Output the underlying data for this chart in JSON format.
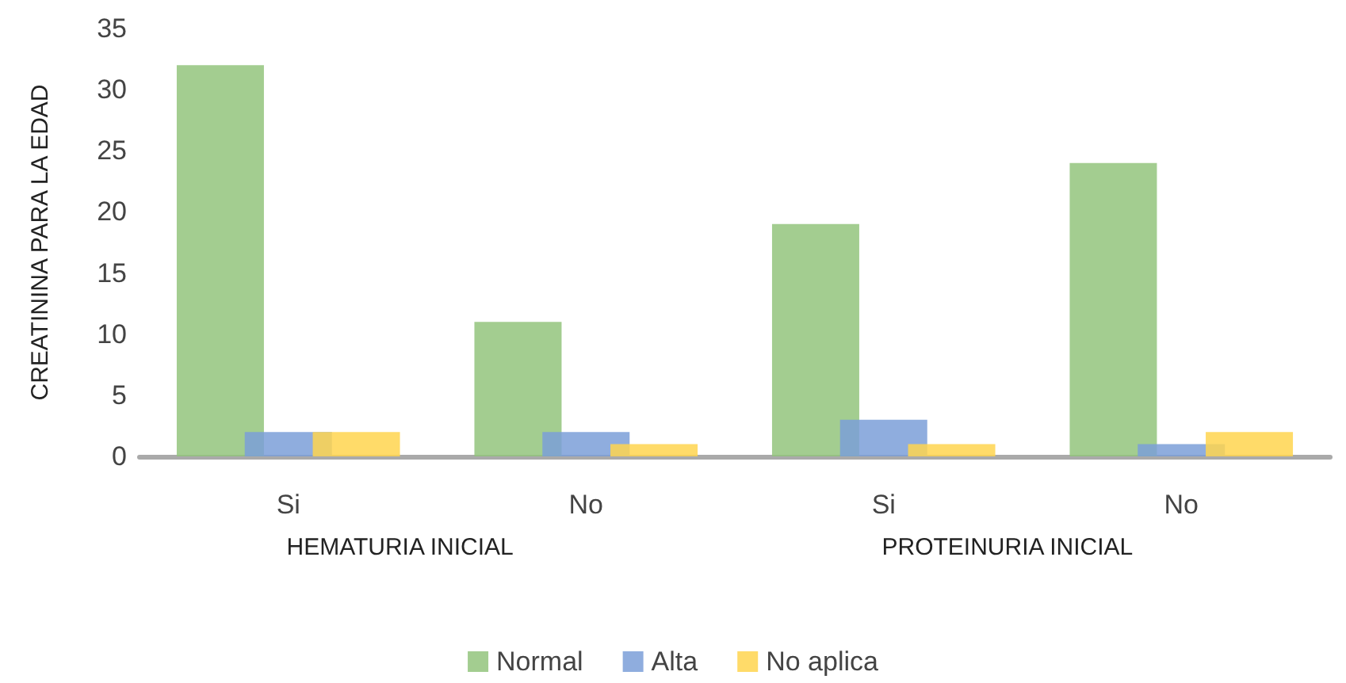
{
  "chart_data": {
    "type": "bar",
    "ylabel": "CREATININA PARA LA EDAD",
    "categories": [
      "Si",
      "No",
      "Si",
      "No"
    ],
    "series": [
      {
        "name": "Normal",
        "color": "#93c47d",
        "values": [
          32,
          11,
          19,
          24
        ]
      },
      {
        "name": "Alta",
        "color": "#7b9fd8",
        "values": [
          2,
          2,
          3,
          1
        ]
      },
      {
        "name": "No aplica",
        "color": "#ffd54f",
        "values": [
          2,
          1,
          1,
          2
        ]
      }
    ],
    "annotations": [
      "HEMATURIA INICIAL",
      "PROTEINURIA INICIAL"
    ],
    "ylim": [
      0,
      35
    ],
    "yticks": [
      0,
      5,
      10,
      15,
      20,
      25,
      30,
      35
    ],
    "grid": false,
    "legend": "bottom"
  }
}
